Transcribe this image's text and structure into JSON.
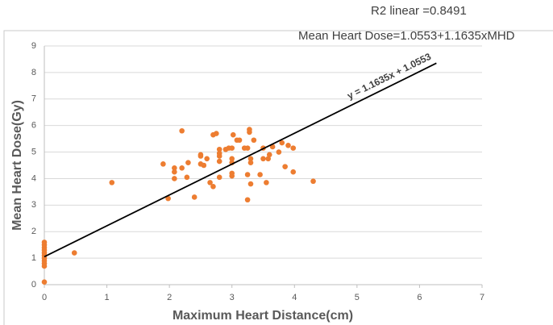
{
  "chart_data": {
    "type": "scatter",
    "annotations": [
      "R2 linear =0.8491",
      "Mean Heart Dose=1.0553+1.1635xMHD"
    ],
    "trendline": {
      "label": "y = 1.1635x + 1.0553",
      "slope": 1.1635,
      "intercept": 1.0553,
      "xrange": [
        0,
        6.27
      ]
    },
    "x_label": "Maximum Heart Distance(cm)",
    "y_label": "Mean Heart Dose(Gy)",
    "color": "#ed7d31",
    "x": [
      0,
      0,
      0,
      0,
      0,
      0,
      0,
      0,
      0,
      0,
      0,
      0.48,
      1.08,
      1.9,
      1.98,
      2.08,
      2.08,
      2.08,
      2.2,
      2.2,
      2.28,
      2.3,
      2.4,
      2.5,
      2.5,
      2.5,
      2.55,
      2.6,
      2.65,
      2.7,
      2.7,
      2.75,
      2.8,
      2.8,
      2.8,
      2.8,
      2.8,
      2.9,
      2.95,
      3.0,
      3.0,
      3.0,
      3.0,
      3.0,
      3.02,
      3.08,
      3.12,
      3.2,
      3.25,
      3.25,
      3.25,
      3.28,
      3.28,
      3.3,
      3.3,
      3.3,
      3.35,
      3.45,
      3.5,
      3.5,
      3.55,
      3.58,
      3.6,
      3.65,
      3.75,
      3.8,
      3.85,
      3.9,
      3.98,
      3.98,
      4.3
    ],
    "values": [
      0.1,
      0.7,
      0.8,
      0.9,
      1.0,
      1.1,
      1.2,
      1.3,
      1.4,
      1.5,
      1.6,
      1.2,
      3.85,
      4.55,
      3.25,
      4.4,
      4.25,
      4.0,
      5.8,
      4.4,
      4.05,
      4.6,
      3.3,
      4.9,
      4.85,
      4.55,
      4.5,
      4.75,
      3.85,
      3.7,
      5.65,
      5.7,
      5.1,
      4.95,
      4.85,
      4.65,
      4.05,
      5.1,
      5.15,
      5.15,
      4.75,
      4.6,
      4.2,
      4.1,
      5.65,
      5.45,
      5.45,
      5.15,
      5.15,
      4.15,
      3.2,
      5.85,
      5.75,
      4.75,
      4.6,
      3.8,
      5.45,
      4.15,
      5.15,
      4.75,
      3.85,
      4.75,
      4.9,
      5.2,
      5.0,
      5.35,
      4.45,
      5.25,
      5.15,
      4.25,
      3.9
    ],
    "xlim": [
      0,
      7
    ],
    "xticks": [
      0,
      1,
      2,
      3,
      4,
      5,
      6,
      7
    ],
    "ylim": [
      0,
      9
    ],
    "yticks": [
      0,
      1,
      2,
      3,
      4,
      5,
      6,
      7,
      8,
      9
    ],
    "grid": true
  }
}
